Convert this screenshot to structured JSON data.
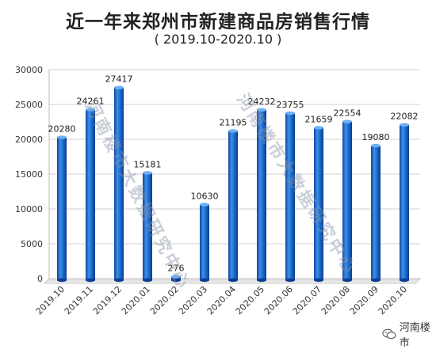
{
  "chart_data": {
    "type": "bar",
    "title": "近一年来郑州市新建商品房销售行情",
    "subtitle": "( 2019.10-2020.10 )",
    "categories": [
      "2019.10",
      "2019.11",
      "2019.12",
      "2020.01",
      "2020.02",
      "2020.03",
      "2020.04",
      "2020.05",
      "2020.06",
      "2020.07",
      "2020.08",
      "2020.09",
      "2020.10"
    ],
    "values": [
      20280,
      24261,
      27417,
      15181,
      276,
      10630,
      21195,
      24232,
      23755,
      21659,
      22554,
      19080,
      22082
    ],
    "ylim": [
      0,
      30000
    ],
    "yticks": [
      0,
      5000,
      10000,
      15000,
      20000,
      25000,
      30000
    ],
    "xlabel": "",
    "ylabel": "",
    "legend": "none",
    "bar_color": "#1565c0"
  },
  "watermarks": [
    "河南楼市大数据研究中心",
    "河南楼市大数据研究中心"
  ],
  "logo_text": "河南楼市"
}
